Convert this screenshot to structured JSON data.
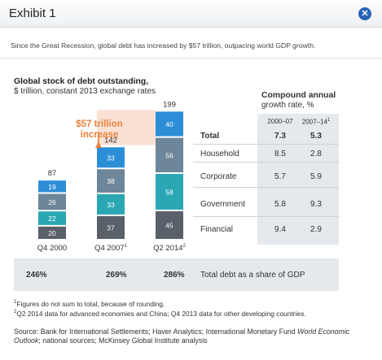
{
  "header": {
    "title": "Exhibit 1",
    "close_icon": "close-icon"
  },
  "subtitle": "Since the Great Recession, global debt has increased by $57 trillion, outpacing world GDP growth.",
  "chart_data": {
    "type": "bar",
    "stacked": true,
    "title": "Global stock of debt outstanding,",
    "subtitle": "$ trillion, constant 2013 exchange rates",
    "categories": [
      "Q4 2000",
      "Q4 2007",
      "Q2 2014"
    ],
    "category_notes": [
      "",
      "1",
      "2"
    ],
    "series": [
      {
        "name": "Financial",
        "values": [
          20,
          37,
          45
        ],
        "color": "#59606a"
      },
      {
        "name": "Government",
        "values": [
          22,
          33,
          58
        ],
        "color": "#2aa7b3"
      },
      {
        "name": "Corporate",
        "values": [
          26,
          38,
          56
        ],
        "color": "#6d8699"
      },
      {
        "name": "Household",
        "values": [
          19,
          33,
          40
        ],
        "color": "#2d8ed8"
      }
    ],
    "totals": [
      87,
      142,
      199
    ],
    "totals_label": "Total",
    "annotation": {
      "text_line1": "$57 trillion",
      "text_line2": "increase",
      "color": "#e8823a",
      "from": "Q4 2007",
      "to": "Q2 2014",
      "value": 57
    }
  },
  "cagr": {
    "title_line1": "Compound annual",
    "title_line2": "growth rate, %",
    "columns": [
      "2000–07",
      "2007–14"
    ],
    "column_note": "1",
    "rows": [
      {
        "label": "Total",
        "v1": "7.3",
        "v2": "5.3",
        "bold": true
      },
      {
        "label": "Household",
        "v1": "8.5",
        "v2": "2.8"
      },
      {
        "label": "Corporate",
        "v1": "5.7",
        "v2": "5.9"
      },
      {
        "label": "Government",
        "v1": "5.8",
        "v2": "9.3"
      },
      {
        "label": "Financial",
        "v1": "9.4",
        "v2": "2.9"
      }
    ]
  },
  "gdp_share": {
    "values": [
      "246%",
      "269%",
      "286%"
    ],
    "label": "Total debt as a share of GDP"
  },
  "footnotes": [
    {
      "mark": "1",
      "text": "Figures do not sum to total, because of rounding."
    },
    {
      "mark": "2",
      "text": "Q2 2014 data for advanced economies and China; Q4 2013 data for other developing countries."
    }
  ],
  "source": {
    "prefix": "Source: Bank for International Settlements; Haver Analytics; International Monetary Fund ",
    "italic": "World Economic Outlook",
    "suffix": "; national sources; McKinsey Global Institute analysis"
  }
}
